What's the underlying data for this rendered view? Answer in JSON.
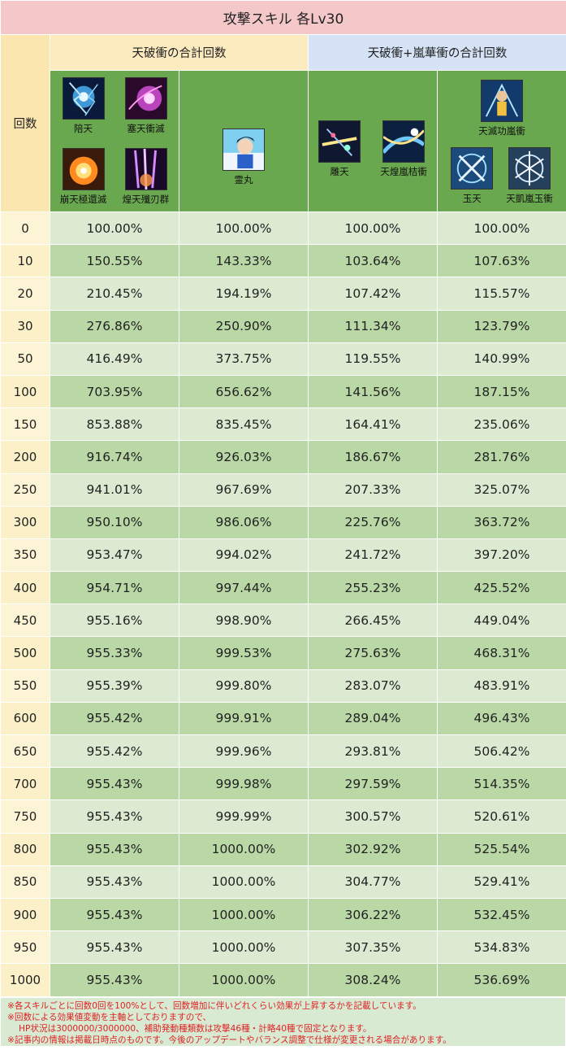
{
  "title": "攻撃スキル 各Lv30",
  "groups": {
    "left": "天破衝の合計回数",
    "right": "天破衝+嵐華衝の合計回数"
  },
  "count_header": "回数",
  "skills": {
    "s1": {
      "label": "陪天",
      "icon": "skill-blue-lightning-icon"
    },
    "s2": {
      "label": "塞天衝滅",
      "icon": "skill-magenta-burst-icon"
    },
    "s3": {
      "label": "崩天極還滅",
      "icon": "skill-fire-explosion-icon"
    },
    "s4": {
      "label": "煌天殲刃群",
      "icon": "skill-purple-blades-icon"
    },
    "s5": {
      "label": "霊丸",
      "icon": "skill-character-portrait-icon"
    },
    "s6": {
      "label": "雕天",
      "icon": "skill-stars-burst-icon"
    },
    "s7": {
      "label": "天煌嵐桔衝",
      "icon": "skill-blue-stream-icon"
    },
    "s8": {
      "label": "天滅功嵐衝",
      "icon": "skill-warrior-icon"
    },
    "s9": {
      "label": "玉天",
      "icon": "skill-crossed-swords-icon"
    },
    "s10": {
      "label": "天凱嵐玉衝",
      "icon": "skill-sword-circle-icon"
    }
  },
  "rows": [
    {
      "count": "0",
      "c1": "100.00%",
      "c2": "100.00%",
      "c3": "100.00%",
      "c4": "100.00%"
    },
    {
      "count": "10",
      "c1": "150.55%",
      "c2": "143.33%",
      "c3": "103.64%",
      "c4": "107.63%"
    },
    {
      "count": "20",
      "c1": "210.45%",
      "c2": "194.19%",
      "c3": "107.42%",
      "c4": "115.57%"
    },
    {
      "count": "30",
      "c1": "276.86%",
      "c2": "250.90%",
      "c3": "111.34%",
      "c4": "123.79%"
    },
    {
      "count": "50",
      "c1": "416.49%",
      "c2": "373.75%",
      "c3": "119.55%",
      "c4": "140.99%"
    },
    {
      "count": "100",
      "c1": "703.95%",
      "c2": "656.62%",
      "c3": "141.56%",
      "c4": "187.15%"
    },
    {
      "count": "150",
      "c1": "853.88%",
      "c2": "835.45%",
      "c3": "164.41%",
      "c4": "235.06%"
    },
    {
      "count": "200",
      "c1": "916.74%",
      "c2": "926.03%",
      "c3": "186.67%",
      "c4": "281.76%"
    },
    {
      "count": "250",
      "c1": "941.01%",
      "c2": "967.69%",
      "c3": "207.33%",
      "c4": "325.07%"
    },
    {
      "count": "300",
      "c1": "950.10%",
      "c2": "986.06%",
      "c3": "225.76%",
      "c4": "363.72%"
    },
    {
      "count": "350",
      "c1": "953.47%",
      "c2": "994.02%",
      "c3": "241.72%",
      "c4": "397.20%"
    },
    {
      "count": "400",
      "c1": "954.71%",
      "c2": "997.44%",
      "c3": "255.23%",
      "c4": "425.52%"
    },
    {
      "count": "450",
      "c1": "955.16%",
      "c2": "998.90%",
      "c3": "266.45%",
      "c4": "449.04%"
    },
    {
      "count": "500",
      "c1": "955.33%",
      "c2": "999.53%",
      "c3": "275.63%",
      "c4": "468.31%"
    },
    {
      "count": "550",
      "c1": "955.39%",
      "c2": "999.80%",
      "c3": "283.07%",
      "c4": "483.91%"
    },
    {
      "count": "600",
      "c1": "955.42%",
      "c2": "999.91%",
      "c3": "289.04%",
      "c4": "496.43%"
    },
    {
      "count": "650",
      "c1": "955.42%",
      "c2": "999.96%",
      "c3": "293.81%",
      "c4": "506.42%"
    },
    {
      "count": "700",
      "c1": "955.43%",
      "c2": "999.98%",
      "c3": "297.59%",
      "c4": "514.35%"
    },
    {
      "count": "750",
      "c1": "955.43%",
      "c2": "999.99%",
      "c3": "300.57%",
      "c4": "520.61%"
    },
    {
      "count": "800",
      "c1": "955.43%",
      "c2": "1000.00%",
      "c3": "302.92%",
      "c4": "525.54%"
    },
    {
      "count": "850",
      "c1": "955.43%",
      "c2": "1000.00%",
      "c3": "304.77%",
      "c4": "529.41%"
    },
    {
      "count": "900",
      "c1": "955.43%",
      "c2": "1000.00%",
      "c3": "306.22%",
      "c4": "532.45%"
    },
    {
      "count": "950",
      "c1": "955.43%",
      "c2": "1000.00%",
      "c3": "307.35%",
      "c4": "534.83%"
    },
    {
      "count": "1000",
      "c1": "955.43%",
      "c2": "1000.00%",
      "c3": "308.24%",
      "c4": "536.69%"
    }
  ],
  "notes": {
    "n1": "※各スキルごとに回数0回を100%として、回数増加に伴いどれくらい効果が上昇するかを記載しています。",
    "n2": "※回数による効果値変動を主軸としておりますので、",
    "n3": "HP状況は3000000/3000000、補助発動種類数は攻撃46種・計略40種で固定となります。",
    "n4": "※記事内の情報は掲載日時点のものです。今後のアップデートやバランス調整で仕様が変更される場合があります。"
  },
  "colors": {
    "title_bg": "#f4c7c9",
    "group_left_bg": "#fdebc0",
    "group_right_bg": "#d6e3f7",
    "icon_row_bg": "#6aa84f",
    "row_light": "#dcead2",
    "row_dark": "#b9d8a6",
    "note_text": "#dd2222"
  }
}
